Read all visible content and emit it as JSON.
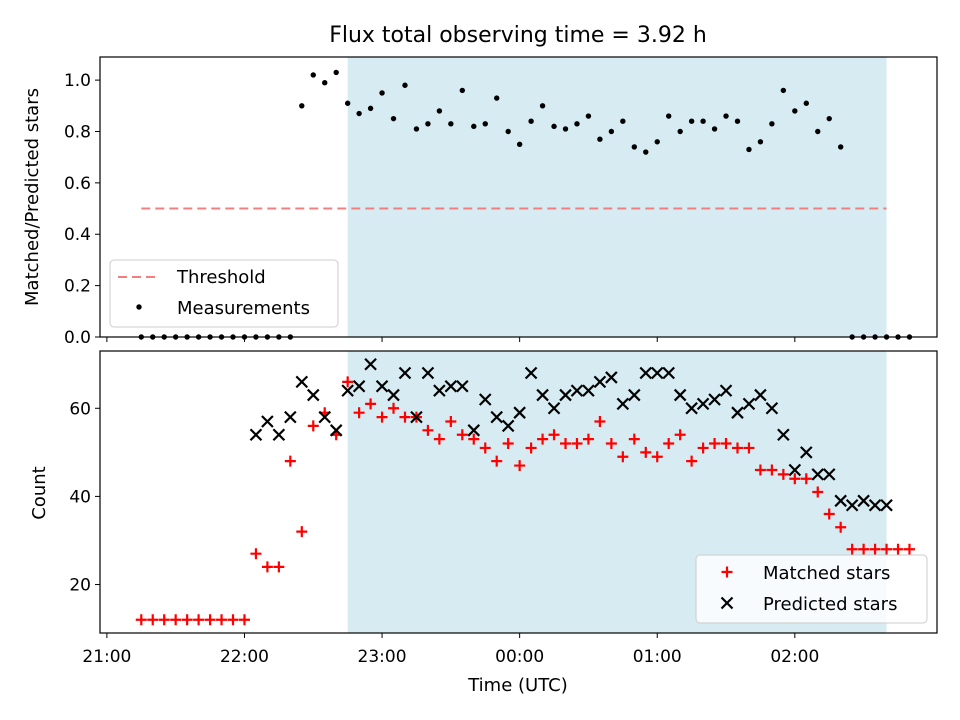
{
  "figure": {
    "title": "Flux total observing time = 3.92 h",
    "x_label": "Time (UTC)",
    "x_ticks": [
      {
        "value": 0,
        "label": "21:00"
      },
      {
        "value": 60,
        "label": "22:00"
      },
      {
        "value": 120,
        "label": "23:00"
      },
      {
        "value": 180,
        "label": "00:00"
      },
      {
        "value": 240,
        "label": "01:00"
      },
      {
        "value": 300,
        "label": "02:00"
      }
    ],
    "x_range_minutes_after_21h": [
      -3,
      362
    ],
    "shaded_interval": [
      105,
      340
    ],
    "shade_color": "#add8e6"
  },
  "chart_data": [
    {
      "type": "scatter",
      "ylabel": "Matched/Predicted stars",
      "ylim": [
        0,
        1.09
      ],
      "y_ticks": [
        "0.0",
        "0.2",
        "0.4",
        "0.6",
        "0.8",
        "1.0"
      ],
      "legend": {
        "placement": "lower-left",
        "entries": [
          "Threshold",
          "Measurements"
        ]
      },
      "threshold": {
        "name": "Threshold",
        "value": 0.5,
        "x_from": 15,
        "x_to": 340,
        "color": "#f08080",
        "style": "dashed"
      },
      "series": [
        {
          "name": "Measurements",
          "color": "#000000",
          "marker": "dot",
          "x": [
            15,
            20,
            25,
            30,
            35,
            40,
            45,
            50,
            55,
            60,
            65,
            70,
            75,
            80,
            85,
            90,
            95,
            100,
            105,
            110,
            115,
            120,
            125,
            130,
            135,
            140,
            145,
            150,
            155,
            160,
            165,
            170,
            175,
            180,
            185,
            190,
            195,
            200,
            205,
            210,
            215,
            220,
            225,
            230,
            235,
            240,
            245,
            250,
            255,
            260,
            265,
            270,
            275,
            280,
            285,
            290,
            295,
            300,
            305,
            310,
            315,
            320,
            325,
            330,
            335,
            340,
            345,
            350
          ],
          "y": [
            0,
            0,
            0,
            0,
            0,
            0,
            0,
            0,
            0,
            0,
            0,
            0,
            0,
            0,
            0.9,
            1.02,
            0.99,
            1.03,
            0.91,
            0.87,
            0.89,
            0.95,
            0.85,
            0.98,
            0.81,
            0.83,
            0.88,
            0.83,
            0.96,
            0.82,
            0.83,
            0.93,
            0.8,
            0.75,
            0.84,
            0.9,
            0.82,
            0.81,
            0.83,
            0.86,
            0.77,
            0.8,
            0.84,
            0.74,
            0.72,
            0.76,
            0.86,
            0.8,
            0.84,
            0.84,
            0.81,
            0.86,
            0.84,
            0.73,
            0.76,
            0.83,
            0.96,
            0.88,
            0.91,
            0.8,
            0.85,
            0.74,
            0,
            0,
            0,
            0,
            0,
            0
          ]
        }
      ]
    },
    {
      "type": "scatter",
      "ylabel": "Count",
      "ylim": [
        9,
        73
      ],
      "y_ticks": [
        "20",
        "40",
        "60"
      ],
      "legend": {
        "placement": "lower-right",
        "entries": [
          "Matched stars",
          "Predicted stars"
        ]
      },
      "series": [
        {
          "name": "Matched stars",
          "color": "#ff0000",
          "marker": "plus",
          "x": [
            15,
            20,
            25,
            30,
            35,
            40,
            45,
            50,
            55,
            60,
            65,
            70,
            75,
            80,
            85,
            90,
            95,
            100,
            105,
            110,
            115,
            120,
            125,
            130,
            135,
            140,
            145,
            150,
            155,
            160,
            165,
            170,
            175,
            180,
            185,
            190,
            195,
            200,
            205,
            210,
            215,
            220,
            225,
            230,
            235,
            240,
            245,
            250,
            255,
            260,
            265,
            270,
            275,
            280,
            285,
            290,
            295,
            300,
            305,
            310,
            315,
            320,
            325,
            330,
            335,
            340,
            345,
            350
          ],
          "y": [
            12,
            12,
            12,
            12,
            12,
            12,
            12,
            12,
            12,
            12,
            27,
            24,
            24,
            48,
            32,
            56,
            59,
            54,
            66,
            59,
            61,
            58,
            60,
            58,
            58,
            55,
            53,
            57,
            54,
            53,
            51,
            48,
            52,
            47,
            51,
            53,
            54,
            52,
            52,
            53,
            57,
            52,
            49,
            53,
            50,
            49,
            52,
            54,
            48,
            51,
            52,
            52,
            51,
            51,
            46,
            46,
            45,
            44,
            44,
            41,
            36,
            33,
            28,
            28,
            28,
            28,
            28,
            28
          ]
        },
        {
          "name": "Predicted stars",
          "color": "#000000",
          "marker": "x",
          "x": [
            65,
            70,
            75,
            80,
            85,
            90,
            95,
            100,
            105,
            110,
            115,
            120,
            125,
            130,
            135,
            140,
            145,
            150,
            155,
            160,
            165,
            170,
            175,
            180,
            185,
            190,
            195,
            200,
            205,
            210,
            215,
            220,
            225,
            230,
            235,
            240,
            245,
            250,
            255,
            260,
            265,
            270,
            275,
            280,
            285,
            290,
            295,
            300,
            305,
            310,
            315,
            320,
            325,
            330,
            335,
            340
          ],
          "y": [
            54,
            57,
            54,
            58,
            66,
            63,
            58,
            55,
            64,
            65,
            70,
            65,
            63,
            68,
            58,
            68,
            64,
            65,
            65,
            55,
            62,
            58,
            56,
            59,
            68,
            63,
            60,
            63,
            64,
            64,
            66,
            67,
            61,
            63,
            68,
            68,
            68,
            63,
            60,
            61,
            62,
            64,
            59,
            61,
            63,
            60,
            54,
            46,
            50,
            45,
            45,
            39,
            38,
            39,
            38,
            38
          ]
        }
      ]
    }
  ]
}
